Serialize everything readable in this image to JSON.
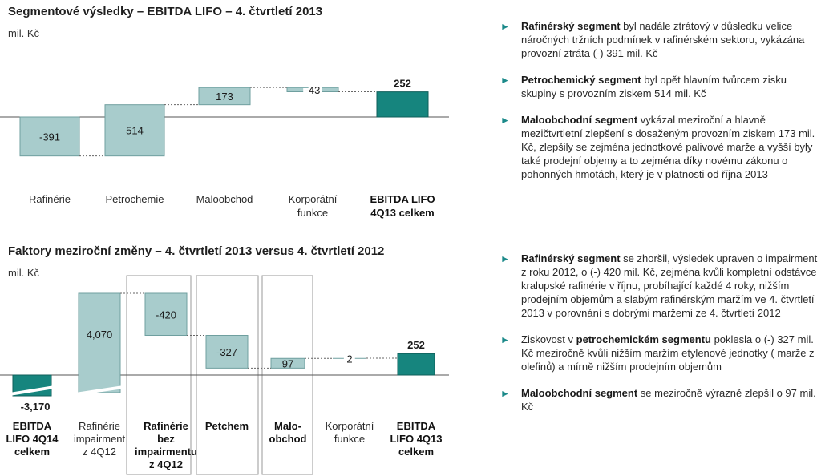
{
  "top": {
    "title": "Segmentové výsledky – EBITDA LIFO – 4. čtvrtletí 2013",
    "unit": "mil. Kč",
    "bullets": [
      {
        "bold": "Rafinérský segment",
        "text": " byl nadále ztrátový v důsledku velice náročných tržních podmínek v rafinérském sektoru, vykázána provozní ztráta (-) 391 mil. Kč"
      },
      {
        "bold": "Petrochemický segment",
        "text": " byl opět hlavním tvůrcem zisku skupiny s provozním ziskem 514 mil. Kč"
      },
      {
        "bold": "Maloobchodní segment",
        "text": " vykázal meziroční a hlavně mezičtvrtletní zlepšení s dosaženým provozním ziskem 173 mil. Kč, zlepšily se zejména jednotkové palivové marže a vyšší byly také prodejní objemy  a to zejména díky novému zákonu o pohonných hmotách, který je v platnosti od října 2013"
      }
    ]
  },
  "bottom": {
    "title": "Faktory meziroční změny – 4. čtvrtletí 2013 versus 4. čtvrtletí 2012",
    "unit": "mil. Kč",
    "bullets": [
      {
        "pre": "",
        "bold": "Rafinérský segment",
        "text": " se zhoršil, výsledek upraven o impairment z roku 2012, o (-) 420 mil. Kč, zejména kvůli kompletní odstávce kralupské rafinérie v říjnu, probíhající každé 4 roky, nižším prodejním objemům a slabým rafinérským maržím ve 4. čtvrtletí 2013 v porovnání s dobrými maržemi ze 4. čtvrtletí 2012"
      },
      {
        "pre": "Ziskovost v ",
        "bold": "petrochemickém segmentu",
        "text": " poklesla o (-) 327 mil. Kč meziročně kvůli nižším maržím etylenové jednotky ( marže z olefinů) a mírně nižším prodejním objemům"
      },
      {
        "pre": "",
        "bold": "Maloobchodní segment",
        "text": " se meziročně výrazně zlepšil o 97 mil. Kč"
      }
    ]
  },
  "colors": {
    "bar": "#a8cccc",
    "bar_stroke": "#6f9f9f",
    "total": "#16857e",
    "total_stroke": "#0f5e59",
    "arrow": "#1c8a8a"
  },
  "chart_data": [
    {
      "type": "bar",
      "subtype": "waterfall",
      "title": "Segmentové výsledky – EBITDA LIFO – 4. čtvrtletí 2013",
      "ylabel": "mil. Kč",
      "categories": [
        "Rafinérie",
        "Petrochemie",
        "Maloobchod",
        "Korporátní funkce",
        "EBITDA LIFO 4Q13 celkem"
      ],
      "values": [
        -391,
        514,
        173,
        -43,
        252
      ],
      "labels": [
        "-391",
        "514",
        "173",
        "-43",
        "252"
      ],
      "is_total": [
        false,
        false,
        false,
        false,
        true
      ],
      "bold_categories": [
        false,
        false,
        false,
        false,
        true
      ]
    },
    {
      "type": "bar",
      "subtype": "waterfall",
      "title": "Faktory meziroční změny – 4. čtvrtletí 2013 versus 4. čtvrtletí 2012",
      "ylabel": "mil. Kč",
      "categories": [
        "EBITDA LIFO 4Q14 celkem",
        "Rafinérie impairment z 4Q12",
        "Rafinérie bez impairmentu z 4Q12",
        "Petchem",
        "Maloobchod",
        "Korporátní funkce",
        "EBITDA LIFO 4Q13 celkem"
      ],
      "values": [
        -3170,
        4070,
        -420,
        -327,
        97,
        2,
        252
      ],
      "labels": [
        "-3,170",
        "4,070",
        "-420",
        "-327",
        "97",
        "2",
        "252"
      ],
      "is_total": [
        true,
        false,
        false,
        false,
        false,
        false,
        true
      ],
      "bold_categories": [
        true,
        false,
        true,
        true,
        true,
        false,
        true
      ],
      "boxed_categories": [
        false,
        false,
        true,
        true,
        true,
        false,
        false
      ],
      "axis_break": true
    }
  ]
}
